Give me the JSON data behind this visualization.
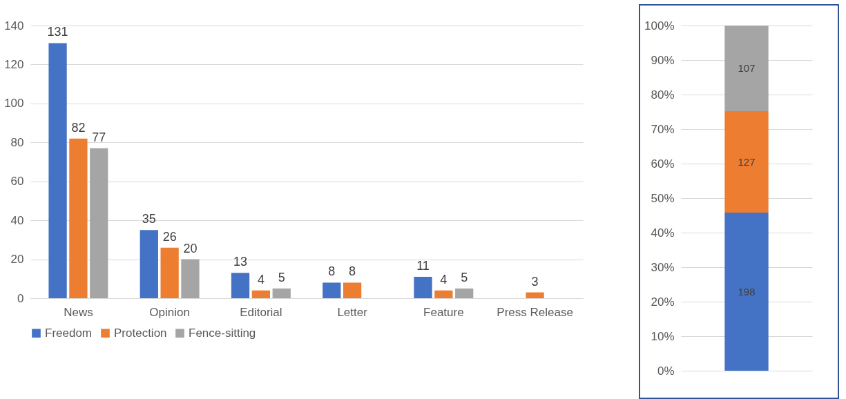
{
  "chart_data": [
    {
      "type": "bar",
      "categories": [
        "News",
        "Opinion",
        "Editorial",
        "Letter",
        "Feature",
        "Press Release"
      ],
      "series": [
        {
          "name": "Freedom",
          "color": "#4472c4",
          "values": [
            131,
            35,
            13,
            8,
            11,
            null
          ]
        },
        {
          "name": "Protection",
          "color": "#ed7d31",
          "values": [
            82,
            26,
            4,
            8,
            4,
            3
          ]
        },
        {
          "name": "Fence-sitting",
          "color": "#a5a5a5",
          "values": [
            77,
            20,
            5,
            null,
            5,
            null
          ]
        }
      ],
      "ylim": [
        0,
        140
      ],
      "yticks": [
        0,
        20,
        40,
        60,
        80,
        100,
        120,
        140
      ],
      "grid": "y",
      "legend": "bottom",
      "data_labels": true
    },
    {
      "type": "bar",
      "stacked": true,
      "categories": [
        null
      ],
      "series": [
        {
          "color": "#4472c4",
          "values": [
            45.8
          ]
        },
        {
          "color": "#ed7d31",
          "values": [
            29.4
          ]
        },
        {
          "color": "#a5a5a5",
          "values": [
            24.8
          ]
        }
      ],
      "annotations": [
        "198",
        "127",
        "107"
      ],
      "ylim": [
        0,
        100
      ],
      "yticks": [
        {
          "value": 0,
          "label": "0%"
        },
        {
          "value": 10,
          "label": "10%"
        },
        {
          "value": 20,
          "label": "20%"
        },
        {
          "value": 30,
          "label": "30%"
        },
        {
          "value": 40,
          "label": "40%"
        },
        {
          "value": 50,
          "label": "50%"
        },
        {
          "value": 60,
          "label": "60%"
        },
        {
          "value": 70,
          "label": "70%"
        },
        {
          "value": 80,
          "label": "80%"
        },
        {
          "value": 90,
          "label": "90%"
        },
        {
          "value": 100,
          "label": "100%"
        }
      ],
      "grid": "y",
      "tick_labels": "y"
    }
  ]
}
